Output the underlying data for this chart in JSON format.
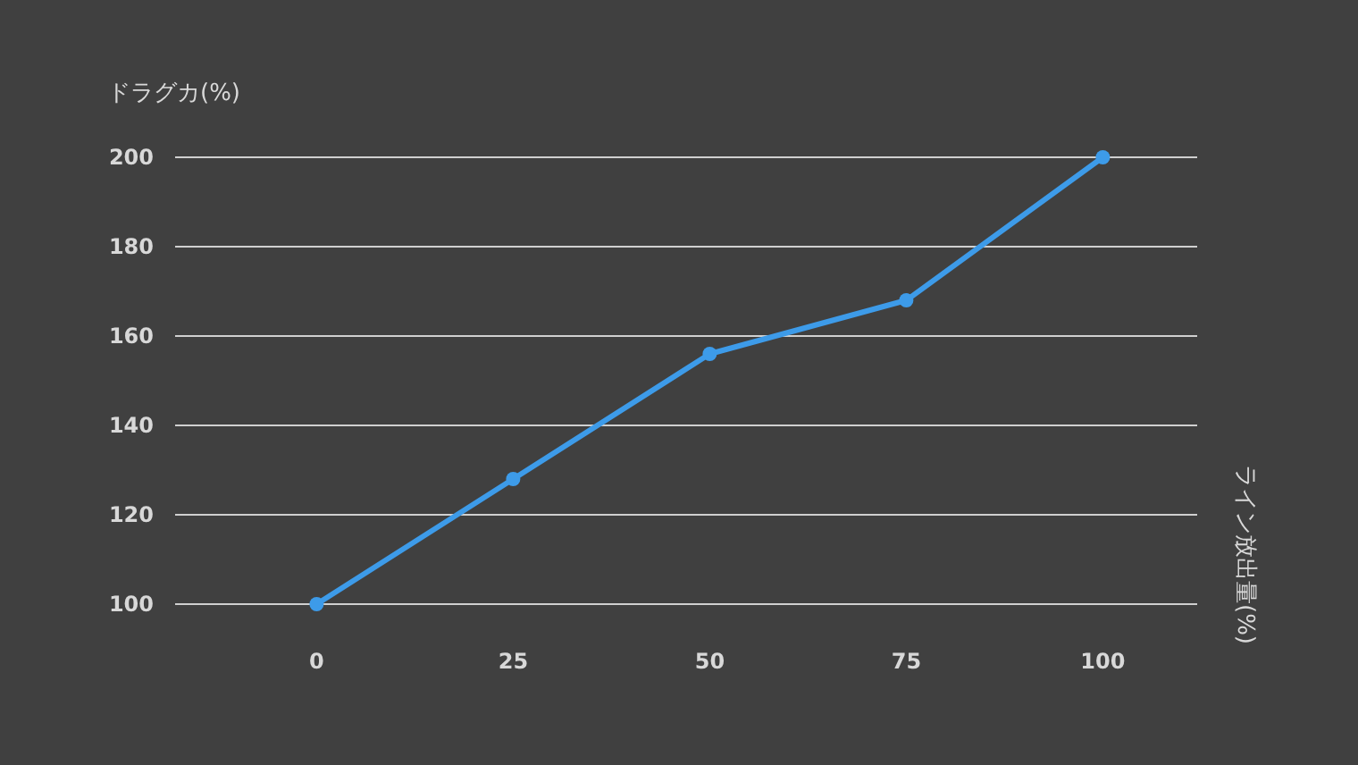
{
  "chart_data": {
    "type": "line",
    "ylabel": "ドラグカ(%)",
    "annotations": [
      "ライン放出量(%)"
    ],
    "x": [
      0,
      25,
      50,
      75,
      100
    ],
    "series": [
      {
        "color": "#3d9be9",
        "values": [
          100,
          128,
          156,
          168,
          200
        ]
      }
    ],
    "xlim": [
      -18,
      112
    ],
    "xticks": [
      0,
      25,
      50,
      75,
      100
    ],
    "ylim": [
      100,
      200
    ],
    "yticks": [
      100,
      120,
      140,
      160,
      180,
      200
    ],
    "grid": "y",
    "marker": "circle",
    "line_style": "solid"
  }
}
